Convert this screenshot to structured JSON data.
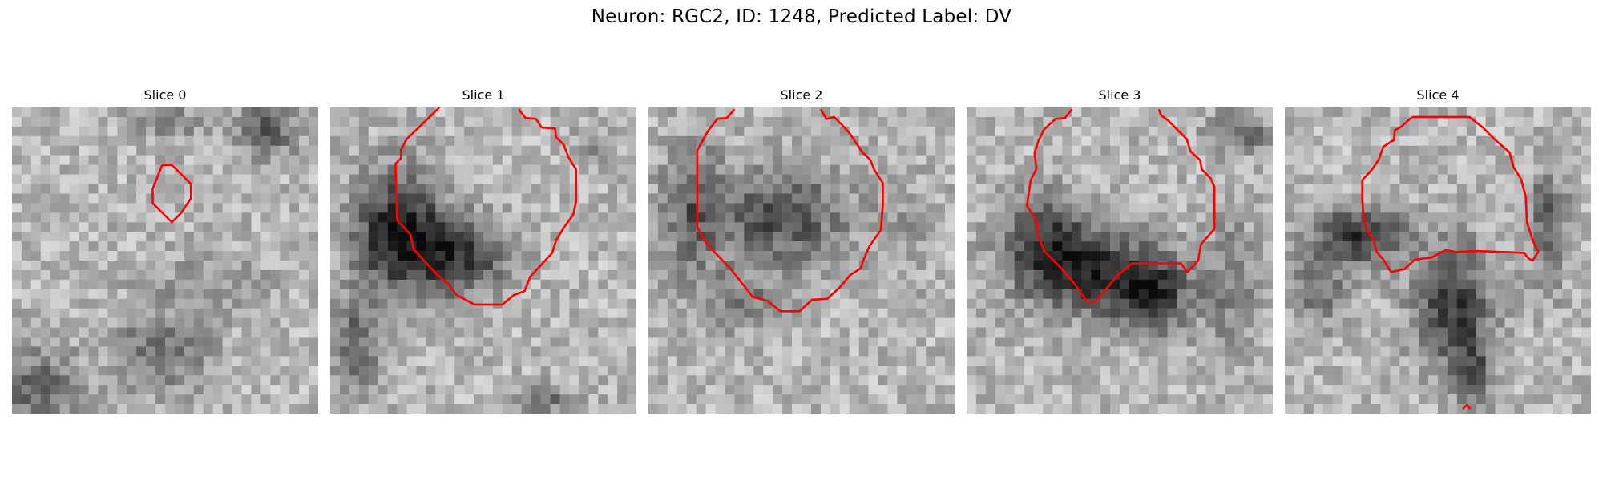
{
  "figure": {
    "title": "Neuron: RGC2, ID: 1248, Predicted Label: DV"
  },
  "panels": [
    {
      "title": "Slice 0"
    },
    {
      "title": "Slice 1"
    },
    {
      "title": "Slice 2"
    },
    {
      "title": "Slice 3"
    },
    {
      "title": "Slice 4"
    }
  ],
  "colors": {
    "contour": "#ff0000",
    "background": "#ffffff",
    "image_colormap": "grayscale"
  }
}
